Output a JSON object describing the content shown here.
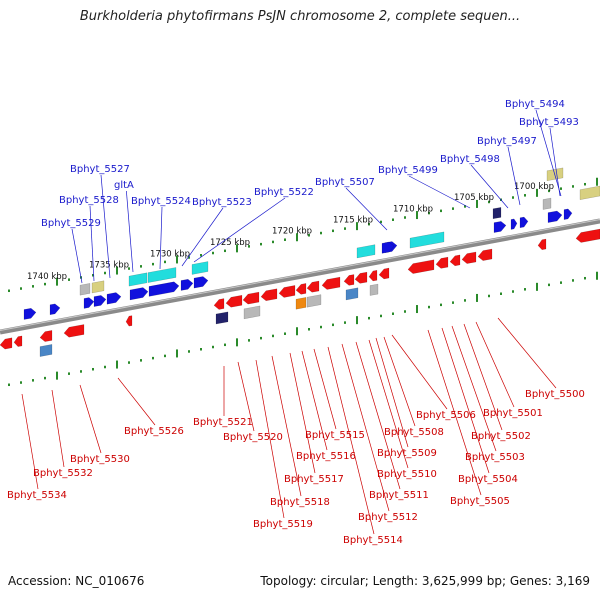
{
  "title": "Burkholderia phytofirmans PsJN chromosome 2, complete sequen...",
  "footer": {
    "accession": "Accession: NC_010676",
    "summary": "Topology: circular; Length: 3,625,999 bp; Genes: 3,169"
  },
  "colors": {
    "forward_label": "#1a1acc",
    "reverse_label": "#cc0000",
    "forward_gene": "#1111dd",
    "reverse_gene": "#ee1111",
    "cyan_gene": "#22dddd",
    "backbone": "#8a8a8a",
    "tick": "#2a8a2a"
  },
  "ruler_upper": [
    "1740 kbp",
    "1735 kbp",
    "1730 kbp",
    "1725 kbp",
    "1720 kbp",
    "1715 kbp",
    "1710 kbp",
    "1705 kbp",
    "1700 kbp"
  ],
  "labels_forward": [
    "Bphyt_5494",
    "Bphyt_5493",
    "Bphyt_5497",
    "Bphyt_5498",
    "Bphyt_5499",
    "Bphyt_5507",
    "Bphyt_5522",
    "Bphyt_5523",
    "Bphyt_5524",
    "gltA",
    "Bphyt_5527",
    "Bphyt_5528",
    "Bphyt_5529"
  ],
  "labels_reverse": [
    "Bphyt_5500",
    "Bphyt_5501",
    "Bphyt_5502",
    "Bphyt_5503",
    "Bphyt_5504",
    "Bphyt_5505",
    "Bphyt_5506",
    "Bphyt_5508",
    "Bphyt_5509",
    "Bphyt_5510",
    "Bphyt_5511",
    "Bphyt_5512",
    "Bphyt_5514",
    "Bphyt_5515",
    "Bphyt_5516",
    "Bphyt_5517",
    "Bphyt_5518",
    "Bphyt_5519",
    "Bphyt_5520",
    "Bphyt_5521",
    "Bphyt_5526",
    "Bphyt_5530",
    "Bphyt_5532",
    "Bphyt_5534"
  ]
}
